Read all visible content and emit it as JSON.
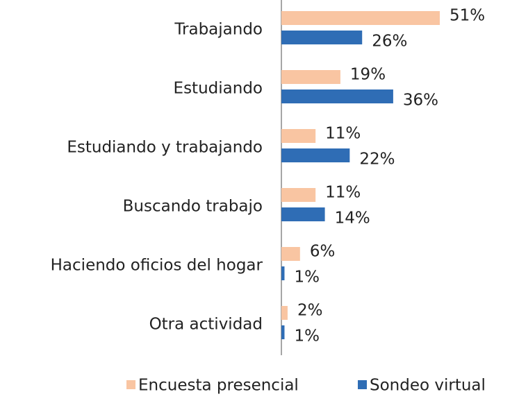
{
  "chart_data": {
    "type": "bar",
    "orientation": "horizontal",
    "categories": [
      "Trabajando",
      "Estudiando",
      "Estudiando y trabajando",
      "Buscando trabajo",
      "Haciendo oficios del hogar",
      "Otra actividad"
    ],
    "series": [
      {
        "name": "Encuesta presencial",
        "color": "#f9c5a2",
        "values": [
          51,
          19,
          11,
          11,
          6,
          2
        ],
        "value_labels": [
          "51%",
          "19%",
          "11%",
          "11%",
          "6%",
          "2%"
        ]
      },
      {
        "name": "Sondeo virtual",
        "color": "#2f6db5",
        "values": [
          26,
          36,
          22,
          14,
          1,
          1
        ],
        "value_labels": [
          "26%",
          "36%",
          "22%",
          "14%",
          "1%",
          "1%"
        ]
      }
    ],
    "legend": "bottom"
  }
}
